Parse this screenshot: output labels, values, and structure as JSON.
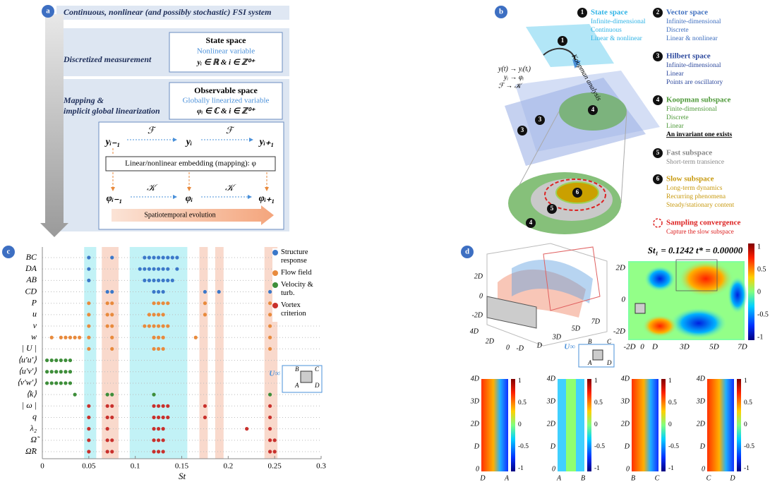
{
  "panel_a": {
    "label": "a",
    "system": "Continuous, nonlinear (and possibly stochastic) FSI system",
    "measurement": "Discretized measurement",
    "state_title": "State space",
    "state_sub": "Nonlinear variable",
    "state_eq": "yᵢ ∈ ℝ & i ∈ ℤ⁰⁺",
    "mapping_1": "Mapping &",
    "mapping_2": "implicit global linearization",
    "obs_title": "Observable space",
    "obs_sub": "Globally linearized variable",
    "obs_eq": "φᵢ ∈ ℂ & i ∈ ℤ⁰⁺",
    "y_nodes": [
      "yᵢ₋₁",
      "yᵢ",
      "yᵢ₊₁"
    ],
    "phi_nodes": [
      "φᵢ₋₁",
      "φᵢ",
      "φᵢ₊₁"
    ],
    "f_op": "ℱ",
    "k_op": "𝒦",
    "embedding": "Linear/nonlinear embedding (mapping): φ",
    "evolution": "Spatiotemporal evolution"
  },
  "panel_b": {
    "label": "b",
    "arrow_text": "Koopman analysis",
    "equations": [
      "y(t) → yᵢ(tᵢ)",
      "yᵢ → φᵢ",
      "ℱ → 𝒦"
    ],
    "legend": [
      {
        "number": "1",
        "title": "State space",
        "lines": [
          "Infinite-dimensional",
          "Continuous",
          "Linear & nonlinear"
        ]
      },
      {
        "number": "2",
        "title": "Vector space",
        "lines": [
          "Infinite-dimensional",
          "Discrete",
          "Linear & nonlinear"
        ]
      },
      {
        "number": "3",
        "title": "Hilbert space",
        "lines": [
          "Infinite-dimensional",
          "Linear",
          "Points are oscillatory"
        ]
      },
      {
        "number": "4",
        "title": "Koopman subspace",
        "lines": [
          "Finite-dimensional",
          "Discrete",
          "Linear",
          "An invariant one exists"
        ]
      },
      {
        "number": "5",
        "title": "Fast subspace",
        "lines": [
          "Short-term transience"
        ]
      },
      {
        "number": "6",
        "title": "Slow subspace",
        "lines": [
          "Long-term dynamics",
          "Recurring phenomena",
          "Steady/stationary content"
        ]
      }
    ],
    "sampling_title": "Sampling convergence",
    "sampling_sub": "Capture the slow subspace"
  },
  "chart_data": {
    "type": "dotgrid",
    "label": "c",
    "xlabel": "St",
    "categories": [
      "BC",
      "DA",
      "AB",
      "CD",
      "P",
      "u",
      "v",
      "w",
      "| U |",
      "⟨u′u′⟩",
      "⟨u′v′⟩",
      "⟨v′w′⟩",
      "⟨k⟩",
      "| ω |",
      "q",
      "λ₂",
      "Ω̃",
      "Ω̃R"
    ],
    "xlim": [
      0,
      0.3
    ],
    "xticks": [
      0,
      0.05,
      0.1,
      0.15,
      0.2,
      0.25,
      0.3
    ],
    "legend": "upper right",
    "bands": [
      {
        "x": [
          0.045,
          0.058
        ],
        "color": "#c2f2f6"
      },
      {
        "x": [
          0.064,
          0.082
        ],
        "color": "#f9d9cc"
      },
      {
        "x": [
          0.094,
          0.156
        ],
        "color": "#c2f2f6"
      },
      {
        "x": [
          0.169,
          0.178
        ],
        "color": "#f9d9cc"
      },
      {
        "x": [
          0.186,
          0.195
        ],
        "color": "#f9d9cc"
      },
      {
        "x": [
          0.239,
          0.253
        ],
        "color": "#f9d9cc"
      }
    ],
    "series": [
      {
        "name": "Structure response",
        "color": "#3b78c9",
        "rows": [
          "BC",
          "BC",
          "BC",
          "BC",
          "BC",
          "BC",
          "BC",
          "BC",
          "BC",
          "BC",
          "DA",
          "DA",
          "DA",
          "DA",
          "DA",
          "DA",
          "DA",
          "DA",
          "DA",
          "AB",
          "AB",
          "AB",
          "AB",
          "AB",
          "AB",
          "AB",
          "AB",
          "CD",
          "CD",
          "CD",
          "CD",
          "CD",
          "CD",
          "CD",
          "CD"
        ],
        "x": [
          0.05,
          0.075,
          0.11,
          0.115,
          0.12,
          0.125,
          0.13,
          0.135,
          0.14,
          0.145,
          0.05,
          0.105,
          0.11,
          0.115,
          0.12,
          0.125,
          0.13,
          0.135,
          0.145,
          0.05,
          0.11,
          0.115,
          0.12,
          0.125,
          0.13,
          0.135,
          0.14,
          0.07,
          0.075,
          0.12,
          0.125,
          0.13,
          0.175,
          0.19,
          0.245
        ]
      },
      {
        "name": "Flow field",
        "color": "#e88a3c",
        "rows": [
          "P",
          "P",
          "P",
          "P",
          "P",
          "P",
          "P",
          "P",
          "P",
          "u",
          "u",
          "u",
          "u",
          "u",
          "u",
          "u",
          "u",
          "u",
          "v",
          "v",
          "v",
          "v",
          "v",
          "v",
          "v",
          "v",
          "v",
          "v",
          "w",
          "w",
          "w",
          "w",
          "w",
          "w",
          "w",
          "w",
          "w",
          "w",
          "w",
          "w",
          "w",
          "| U |",
          "| U |",
          "| U |",
          "| U |",
          "| U |",
          "| U |"
        ],
        "x": [
          0.05,
          0.07,
          0.075,
          0.12,
          0.125,
          0.13,
          0.135,
          0.175,
          0.245,
          0.05,
          0.07,
          0.075,
          0.115,
          0.12,
          0.125,
          0.13,
          0.175,
          0.245,
          0.05,
          0.07,
          0.075,
          0.11,
          0.115,
          0.12,
          0.125,
          0.13,
          0.135,
          0.245,
          0.01,
          0.02,
          0.025,
          0.03,
          0.035,
          0.04,
          0.05,
          0.075,
          0.12,
          0.125,
          0.13,
          0.165,
          0.245,
          0.05,
          0.075,
          0.12,
          0.125,
          0.13,
          0.245
        ]
      },
      {
        "name": "Velocity & turb.",
        "color": "#3e8e3a",
        "rows": [
          "⟨u′u′⟩",
          "⟨u′u′⟩",
          "⟨u′u′⟩",
          "⟨u′u′⟩",
          "⟨u′u′⟩",
          "⟨u′u′⟩",
          "⟨u′v′⟩",
          "⟨u′v′⟩",
          "⟨u′v′⟩",
          "⟨u′v′⟩",
          "⟨u′v′⟩",
          "⟨u′v′⟩",
          "⟨v′w′⟩",
          "⟨v′w′⟩",
          "⟨v′w′⟩",
          "⟨v′w′⟩",
          "⟨v′w′⟩",
          "⟨v′w′⟩",
          "⟨k⟩",
          "⟨k⟩",
          "⟨k⟩",
          "⟨k⟩",
          "⟨k⟩"
        ],
        "x": [
          0.005,
          0.01,
          0.015,
          0.02,
          0.025,
          0.03,
          0.005,
          0.01,
          0.015,
          0.02,
          0.025,
          0.03,
          0.005,
          0.01,
          0.015,
          0.02,
          0.025,
          0.03,
          0.035,
          0.07,
          0.075,
          0.12,
          0.245
        ]
      },
      {
        "name": "Vortex criterion",
        "color": "#c9302c",
        "rows": [
          "| ω |",
          "| ω |",
          "| ω |",
          "| ω |",
          "| ω |",
          "| ω |",
          "| ω |",
          "| ω |",
          "| ω |",
          "q",
          "q",
          "q",
          "q",
          "q",
          "q",
          "q",
          "q",
          "q",
          "λ₂",
          "λ₂",
          "λ₂",
          "λ₂",
          "λ₂",
          "λ₂",
          "λ₂",
          "Ω̃",
          "Ω̃",
          "Ω̃",
          "Ω̃",
          "Ω̃",
          "Ω̃",
          "Ω̃",
          "Ω̃",
          "Ω̃R",
          "Ω̃R",
          "Ω̃R",
          "Ω̃R",
          "Ω̃R",
          "Ω̃R",
          "Ω̃R",
          "Ω̃R"
        ],
        "x": [
          0.05,
          0.07,
          0.075,
          0.12,
          0.125,
          0.13,
          0.135,
          0.175,
          0.245,
          0.05,
          0.07,
          0.075,
          0.12,
          0.125,
          0.13,
          0.135,
          0.175,
          0.245,
          0.05,
          0.07,
          0.12,
          0.125,
          0.13,
          0.22,
          0.245,
          0.05,
          0.07,
          0.075,
          0.12,
          0.125,
          0.13,
          0.245,
          0.25,
          0.05,
          0.07,
          0.075,
          0.12,
          0.125,
          0.13,
          0.245,
          0.25
        ]
      }
    ],
    "inset": {
      "flow": "U∞",
      "corners": [
        "B",
        "C",
        "A",
        "D"
      ]
    }
  },
  "panel_d": {
    "label": "d",
    "title": "St₁ = 0.1242   t* = 0.00000",
    "colorbar_ticks": [
      1,
      0.5,
      0,
      -0.5,
      -1
    ],
    "field_yticks": [
      "2D",
      "0",
      "-2D"
    ],
    "field_xticks": [
      "-2D",
      "0",
      "D",
      "3D",
      "5D",
      "7D"
    ],
    "iso_labels": [
      "2D",
      "0",
      "-2D",
      "4D",
      "2D",
      "0",
      "-D",
      "D",
      "3D",
      "5D",
      "7D"
    ],
    "inset": {
      "flow": "U∞",
      "corners": [
        "B",
        "C",
        "A",
        "D"
      ]
    },
    "strip_yticks": [
      "4D",
      "3D",
      "2D",
      "D",
      "0"
    ],
    "strips": [
      [
        "D",
        "A"
      ],
      [
        "A",
        "B"
      ],
      [
        "B",
        "C"
      ],
      [
        "C",
        "D"
      ]
    ]
  }
}
